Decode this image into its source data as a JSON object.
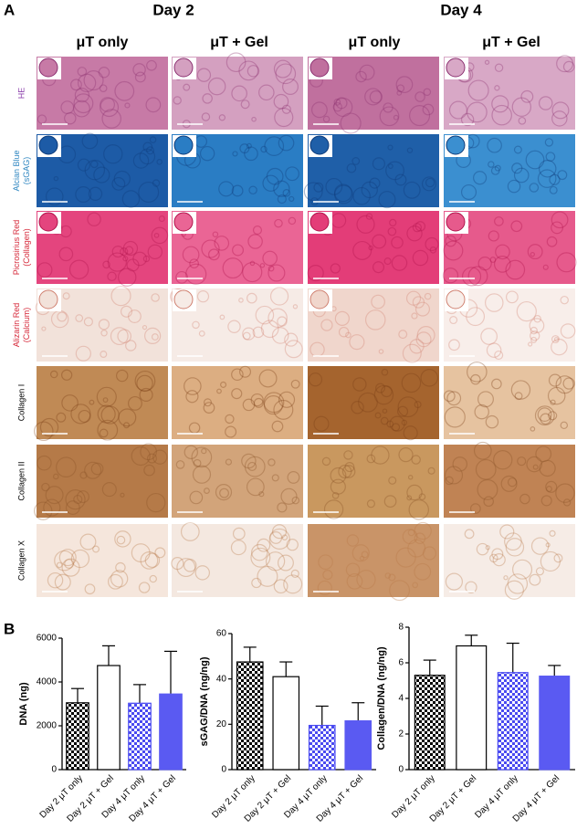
{
  "figure": {
    "panel_a_label": "A",
    "panel_b_label": "B",
    "day_headers": [
      "Day 2",
      "Day 4"
    ],
    "column_headers": [
      "μT only",
      "μT + Gel",
      "μT only",
      "μT + Gel"
    ],
    "row_labels": [
      {
        "lines": [
          "HE"
        ],
        "color": "#8e44ad"
      },
      {
        "lines": [
          "Alcian Blue",
          "(sGAG)"
        ],
        "color": "#2e86c1"
      },
      {
        "lines": [
          "Picrosirius Red",
          "(Collagen)"
        ],
        "color": "#d62839"
      },
      {
        "lines": [
          "Alizarin Red",
          "(Calcium)"
        ],
        "color": "#d62839"
      },
      {
        "lines": [
          "Collagen I"
        ],
        "color": "#000000"
      },
      {
        "lines": [
          "Collagen II"
        ],
        "color": "#000000"
      },
      {
        "lines": [
          "Collagen X"
        ],
        "color": "#000000"
      }
    ]
  },
  "chart_data": [
    {
      "type": "bar",
      "ylabel": "DNA (ng)",
      "categories": [
        "Day 2 μT only",
        "Day 2 μT + Gel",
        "Day 4 μT only",
        "Day 4 μT + Gel"
      ],
      "values": [
        3050,
        4750,
        3030,
        3450
      ],
      "errors": [
        650,
        900,
        850,
        1950
      ],
      "colors": [
        "#000000",
        "#ffffff",
        "#4a4af0",
        "#5a5af2"
      ],
      "patterns": [
        "checker",
        "solid",
        "checker",
        "solid"
      ],
      "ylim": [
        0,
        6000
      ],
      "yticks": [
        0,
        2000,
        4000,
        6000
      ]
    },
    {
      "type": "bar",
      "ylabel": "sGAG/DNA (ng/ng)",
      "categories": [
        "Day 2 μT only",
        "Day 2 μT + Gel",
        "Day 4 μT only",
        "Day 4 μT + Gel"
      ],
      "values": [
        47.5,
        41,
        19.5,
        21.5
      ],
      "errors": [
        6.5,
        6.5,
        8.5,
        8
      ],
      "colors": [
        "#000000",
        "#ffffff",
        "#4a4af0",
        "#5a5af2"
      ],
      "patterns": [
        "checker",
        "solid",
        "checker",
        "solid"
      ],
      "ylim": [
        0,
        60
      ],
      "yticks": [
        0,
        20,
        40,
        60
      ]
    },
    {
      "type": "bar",
      "ylabel": "Collagen/DNA (ng/ng)",
      "categories": [
        "Day 2 μT only",
        "Day 2 μT + Gel",
        "Day 4 μT only",
        "Day 4 μT + Gel"
      ],
      "values": [
        5.3,
        6.95,
        5.45,
        5.25
      ],
      "errors": [
        0.85,
        0.6,
        1.65,
        0.6
      ],
      "colors": [
        "#000000",
        "#ffffff",
        "#4a4af0",
        "#5a5af2"
      ],
      "patterns": [
        "checker",
        "solid",
        "checker",
        "solid"
      ],
      "ylim": [
        0,
        8
      ],
      "yticks": [
        0,
        2,
        4,
        6,
        8
      ]
    }
  ]
}
